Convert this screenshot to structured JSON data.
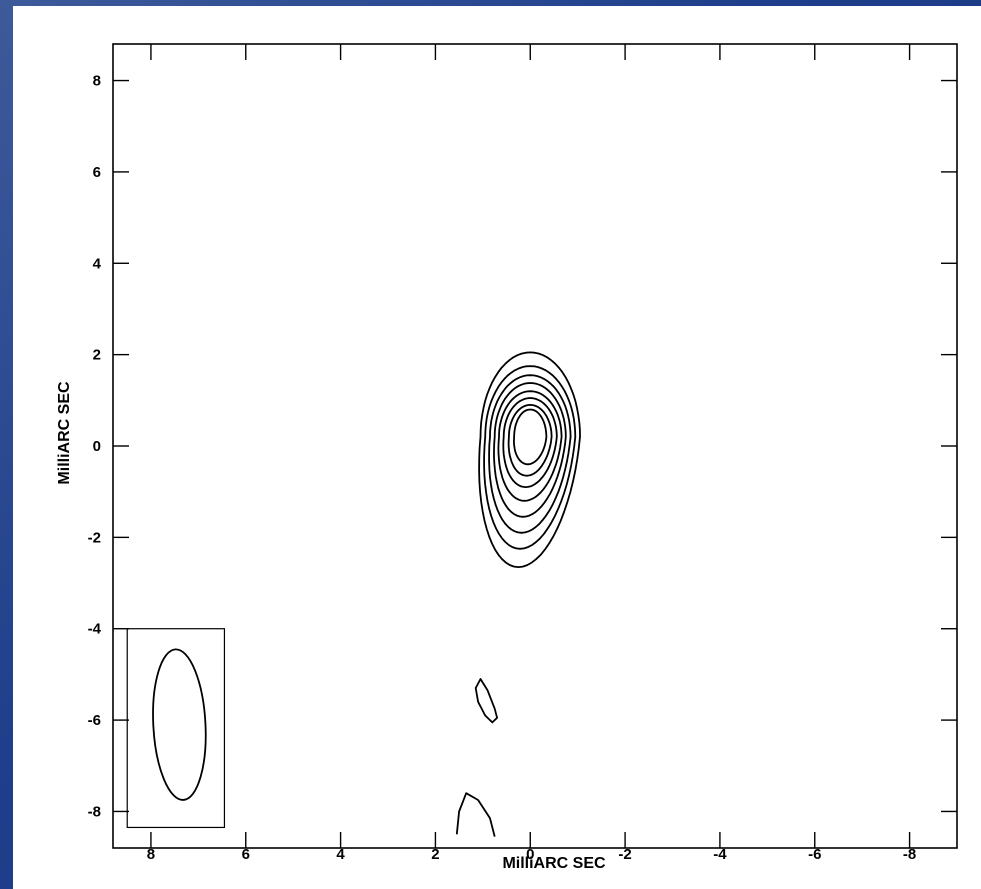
{
  "chart_data": {
    "type": "contour",
    "xlabel": "MilliARC SEC",
    "ylabel": "MilliARC SEC",
    "xlim": [
      8.8,
      -9.0
    ],
    "ylim": [
      -8.8,
      8.8
    ],
    "x_ticks": [
      8,
      6,
      4,
      2,
      0,
      -2,
      -4,
      -6,
      -8
    ],
    "x_tick_labels": [
      "8",
      "6",
      "4",
      "2",
      "0",
      "-2",
      "-4",
      "-6",
      "-8"
    ],
    "y_ticks": [
      8,
      6,
      4,
      2,
      0,
      -2,
      -4,
      -6,
      -8
    ],
    "y_tick_labels": [
      "8",
      "6",
      "4",
      "2",
      "0",
      "-2",
      "-4",
      "-6",
      "-8"
    ],
    "grid": false,
    "core_center": [
      0.0,
      0.2
    ],
    "core_contours": [
      {
        "level": 1,
        "semi_x": 1.05,
        "semi_y_top": 1.85,
        "semi_y_bottom": 2.85
      },
      {
        "level": 2,
        "semi_x": 0.95,
        "semi_y_top": 1.55,
        "semi_y_bottom": 2.45
      },
      {
        "level": 3,
        "semi_x": 0.85,
        "semi_y_top": 1.35,
        "semi_y_bottom": 2.1
      },
      {
        "level": 4,
        "semi_x": 0.75,
        "semi_y_top": 1.18,
        "semi_y_bottom": 1.75
      },
      {
        "level": 5,
        "semi_x": 0.66,
        "semi_y_top": 1.0,
        "semi_y_bottom": 1.4
      },
      {
        "level": 6,
        "semi_x": 0.56,
        "semi_y_top": 0.85,
        "semi_y_bottom": 1.1
      },
      {
        "level": 7,
        "semi_x": 0.45,
        "semi_y_top": 0.7,
        "semi_y_bottom": 0.85
      },
      {
        "level": 8,
        "semi_x": 0.34,
        "semi_y_top": 0.6,
        "semi_y_bottom": 0.6
      }
    ],
    "secondary_features": [
      {
        "name": "blob-1",
        "points": [
          [
            1.05,
            -5.1
          ],
          [
            0.9,
            -5.35
          ],
          [
            0.75,
            -5.75
          ],
          [
            0.7,
            -5.95
          ],
          [
            0.8,
            -6.05
          ],
          [
            0.95,
            -5.9
          ],
          [
            1.1,
            -5.6
          ],
          [
            1.15,
            -5.3
          ]
        ]
      },
      {
        "name": "blob-2",
        "points": [
          [
            1.55,
            -8.5
          ],
          [
            1.5,
            -8.0
          ],
          [
            1.35,
            -7.6
          ],
          [
            1.1,
            -7.75
          ],
          [
            0.85,
            -8.15
          ],
          [
            0.75,
            -8.55
          ]
        ]
      }
    ],
    "beam": {
      "center": [
        7.4,
        -6.1
      ],
      "semi_major": 1.65,
      "semi_minor": 0.55,
      "box_x": [
        8.5,
        6.45
      ],
      "box_y": [
        -4.0,
        -8.35
      ]
    }
  }
}
